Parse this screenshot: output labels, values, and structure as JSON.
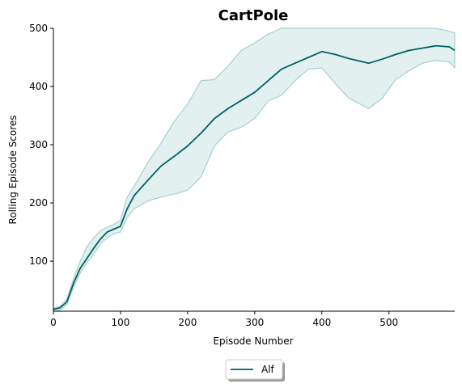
{
  "chart_data": {
    "type": "line",
    "title": "CartPole",
    "xlabel": "Episode Number",
    "ylabel": "Rolling Episode Scores",
    "xlim": [
      0,
      598
    ],
    "ylim": [
      14,
      500
    ],
    "xticks": [
      0,
      100,
      200,
      300,
      400,
      500
    ],
    "yticks": [
      100,
      200,
      300,
      400,
      500
    ],
    "grid": false,
    "legend_position": "bottom-center",
    "series": [
      {
        "name": "Alf",
        "color": "#006064",
        "band_color": "#b2d8d8",
        "x": [
          0,
          10,
          20,
          30,
          40,
          50,
          60,
          70,
          80,
          90,
          100,
          110,
          120,
          140,
          160,
          180,
          200,
          220,
          240,
          260,
          280,
          300,
          320,
          340,
          360,
          380,
          400,
          420,
          440,
          470,
          490,
          510,
          530,
          550,
          570,
          590,
          598
        ],
        "mean": [
          17,
          20,
          30,
          62,
          88,
          105,
          122,
          138,
          150,
          155,
          160,
          190,
          212,
          238,
          263,
          280,
          298,
          320,
          345,
          362,
          376,
          390,
          410,
          430,
          440,
          450,
          460,
          455,
          448,
          440,
          447,
          455,
          462,
          466,
          470,
          468,
          462
        ],
        "upper": [
          19,
          22,
          35,
          70,
          100,
          125,
          140,
          152,
          158,
          163,
          170,
          210,
          228,
          268,
          302,
          340,
          370,
          410,
          412,
          435,
          462,
          475,
          490,
          500,
          500,
          500,
          500,
          500,
          500,
          500,
          500,
          500,
          500,
          500,
          500,
          495,
          492
        ],
        "lower": [
          14,
          16,
          25,
          55,
          80,
          98,
          112,
          130,
          140,
          147,
          150,
          175,
          190,
          203,
          210,
          215,
          222,
          245,
          298,
          322,
          330,
          345,
          375,
          385,
          410,
          430,
          432,
          405,
          380,
          362,
          380,
          412,
          427,
          440,
          445,
          442,
          432
        ]
      }
    ]
  }
}
